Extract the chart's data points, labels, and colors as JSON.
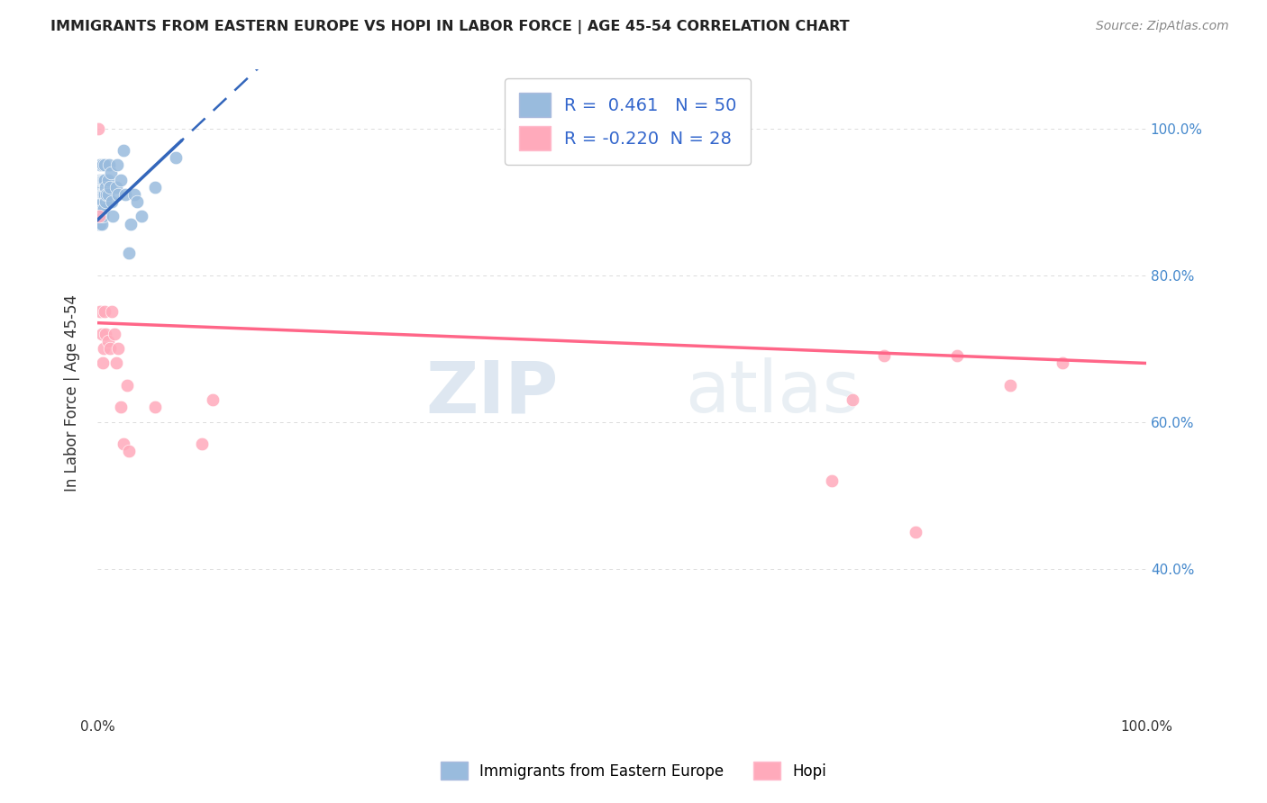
{
  "title": "IMMIGRANTS FROM EASTERN EUROPE VS HOPI IN LABOR FORCE | AGE 45-54 CORRELATION CHART",
  "source": "Source: ZipAtlas.com",
  "ylabel": "In Labor Force | Age 45-54",
  "xlim": [
    0.0,
    1.0
  ],
  "ylim": [
    0.2,
    1.08
  ],
  "blue_r": 0.461,
  "blue_n": 50,
  "pink_r": -0.22,
  "pink_n": 28,
  "blue_color": "#99BBDD",
  "pink_color": "#FFAABB",
  "blue_line_color": "#3366BB",
  "pink_line_color": "#FF6688",
  "background_color": "#FFFFFF",
  "grid_color": "#CCCCCC",
  "legend_label_blue": "Immigrants from Eastern Europe",
  "legend_label_pink": "Hopi",
  "watermark_zip": "ZIP",
  "watermark_atlas": "atlas",
  "blue_scatter_x": [
    0.001,
    0.001,
    0.001,
    0.002,
    0.002,
    0.002,
    0.002,
    0.003,
    0.003,
    0.003,
    0.003,
    0.003,
    0.004,
    0.004,
    0.004,
    0.004,
    0.005,
    0.005,
    0.005,
    0.005,
    0.005,
    0.006,
    0.006,
    0.006,
    0.007,
    0.007,
    0.007,
    0.008,
    0.008,
    0.009,
    0.01,
    0.01,
    0.011,
    0.012,
    0.013,
    0.014,
    0.015,
    0.018,
    0.019,
    0.02,
    0.022,
    0.025,
    0.027,
    0.03,
    0.032,
    0.035,
    0.038,
    0.042,
    0.055,
    0.075
  ],
  "blue_scatter_y": [
    0.9,
    0.88,
    0.87,
    0.92,
    0.9,
    0.88,
    0.87,
    0.95,
    0.93,
    0.91,
    0.89,
    0.87,
    0.93,
    0.91,
    0.89,
    0.87,
    0.95,
    0.93,
    0.91,
    0.9,
    0.88,
    0.93,
    0.91,
    0.89,
    0.95,
    0.93,
    0.91,
    0.92,
    0.9,
    0.91,
    0.93,
    0.91,
    0.95,
    0.92,
    0.94,
    0.9,
    0.88,
    0.92,
    0.95,
    0.91,
    0.93,
    0.97,
    0.91,
    0.83,
    0.87,
    0.91,
    0.9,
    0.88,
    0.92,
    0.96
  ],
  "pink_scatter_x": [
    0.001,
    0.002,
    0.003,
    0.004,
    0.005,
    0.006,
    0.007,
    0.008,
    0.01,
    0.012,
    0.014,
    0.016,
    0.018,
    0.02,
    0.022,
    0.025,
    0.028,
    0.03,
    0.055,
    0.1,
    0.11,
    0.7,
    0.72,
    0.75,
    0.78,
    0.82,
    0.87,
    0.92
  ],
  "pink_scatter_y": [
    1.0,
    0.88,
    0.75,
    0.72,
    0.68,
    0.7,
    0.75,
    0.72,
    0.71,
    0.7,
    0.75,
    0.72,
    0.68,
    0.7,
    0.62,
    0.57,
    0.65,
    0.56,
    0.62,
    0.57,
    0.63,
    0.52,
    0.63,
    0.69,
    0.45,
    0.69,
    0.65,
    0.68
  ],
  "pink_line_x0": 0.0,
  "pink_line_y0": 0.735,
  "pink_line_x1": 1.0,
  "pink_line_y1": 0.68,
  "blue_line_x0": 0.0,
  "blue_line_y0": 0.875,
  "blue_line_x1": 0.1,
  "blue_line_y1": 1.01
}
